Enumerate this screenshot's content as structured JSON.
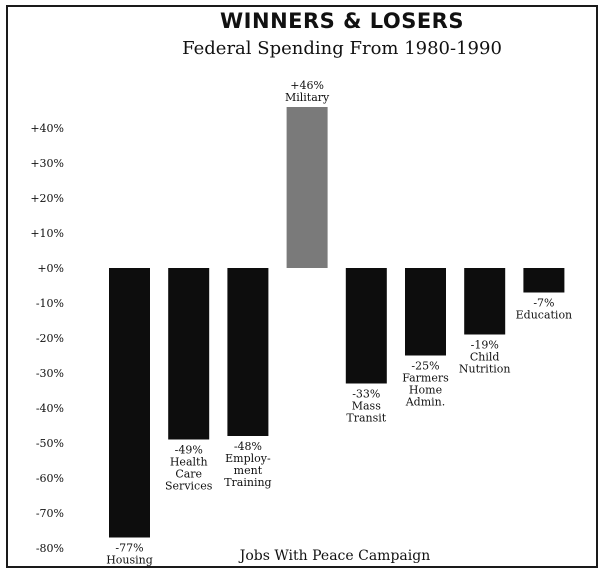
{
  "chart_data": {
    "type": "bar",
    "title": "WINNERS & LOSERS",
    "subtitle": "Federal Spending From 1980-1990",
    "footer": "Jobs With Peace Campaign",
    "xlabel": "",
    "ylabel": "",
    "ylim": [
      -80,
      40
    ],
    "yticks": [
      40,
      30,
      20,
      10,
      0,
      -10,
      -20,
      -30,
      -40,
      -50,
      -60,
      -70,
      -80
    ],
    "ytick_labels": [
      "+40%",
      "+30%",
      "+20%",
      "+10%",
      "+0%",
      "-10%",
      "-20%",
      "-30%",
      "-40%",
      "-50%",
      "-60%",
      "-70%",
      "-80%"
    ],
    "grid": false,
    "legend": "none",
    "colors": {
      "negative": "#0d0d0d",
      "positive": "#7a7a7a",
      "text": "#111111"
    },
    "categories": [
      "Housing",
      "Health Care Services",
      "Employment Training",
      "Military",
      "Mass Transit",
      "Farmers Home Admin.",
      "Child Nutrition",
      "Education"
    ],
    "values": [
      -77,
      -49,
      -48,
      46,
      -33,
      -25,
      -19,
      -7
    ],
    "data_labels": [
      [
        "-77%",
        "Housing"
      ],
      [
        "-49%",
        "Health",
        "Care",
        "Services"
      ],
      [
        "-48%",
        "Employ-",
        "ment",
        "Training"
      ],
      [
        "+46%",
        "Military"
      ],
      [
        "-33%",
        "Mass",
        "Transit"
      ],
      [
        "-25%",
        "Farmers",
        "Home",
        "Admin."
      ],
      [
        "-19%",
        "Child",
        "Nutrition"
      ],
      [
        "-7%",
        "Education"
      ]
    ]
  }
}
